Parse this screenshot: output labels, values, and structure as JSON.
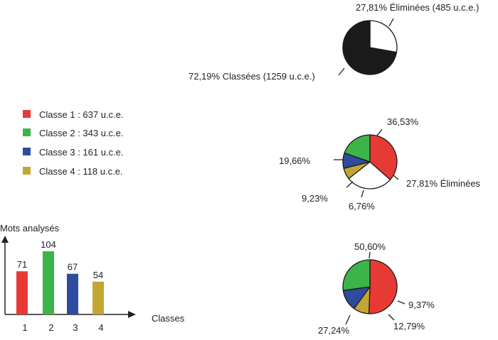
{
  "colors": {
    "classe1": "#e83a34",
    "classe2": "#3db44a",
    "classe3": "#2f4b9e",
    "classe4": "#c3a534",
    "classees": "#1a1a1a",
    "eliminees": "#ffffff"
  },
  "legend": {
    "items": [
      {
        "label": "Classe 1 : 637 u.c.e.",
        "color_key": "classe1"
      },
      {
        "label": "Classe 2 : 343 u.c.e.",
        "color_key": "classe2"
      },
      {
        "label": "Classe 3 : 161 u.c.e.",
        "color_key": "classe3"
      },
      {
        "label": "Classe 4 : 118 u.c.e.",
        "color_key": "classe4"
      }
    ]
  },
  "chart_data": [
    {
      "type": "pie",
      "slices": [
        {
          "value": 27.81,
          "color_key": "eliminees",
          "label": "27,81% Éliminées (485 u.c.e.)"
        },
        {
          "value": 72.19,
          "color_key": "classees",
          "label": "72,19% Classées (1259 u.c.e.)"
        }
      ]
    },
    {
      "type": "pie",
      "slices": [
        {
          "value": 36.53,
          "color_key": "classe1",
          "label": "36,53%"
        },
        {
          "value": 27.81,
          "color_key": "eliminees",
          "label": "27,81% Éliminées"
        },
        {
          "value": 6.76,
          "color_key": "classe4",
          "label": "6,76%"
        },
        {
          "value": 9.23,
          "color_key": "classe3",
          "label": "9,23%"
        },
        {
          "value": 19.66,
          "color_key": "classe2",
          "label": "19,66%"
        }
      ]
    },
    {
      "type": "pie",
      "slices": [
        {
          "value": 50.6,
          "color_key": "classe1",
          "label": "50,60%"
        },
        {
          "value": 9.37,
          "color_key": "classe4",
          "label": "9,37%"
        },
        {
          "value": 12.79,
          "color_key": "classe3",
          "label": "12,79%"
        },
        {
          "value": 27.24,
          "color_key": "classe2",
          "label": "27,24%"
        }
      ]
    },
    {
      "type": "bar",
      "ylabel": "Mots analysés",
      "xlabel": "Classes",
      "categories": [
        "1",
        "2",
        "3",
        "4"
      ],
      "values": [
        71,
        104,
        67,
        54
      ],
      "color_keys": [
        "classe1",
        "classe2",
        "classe3",
        "classe4"
      ]
    }
  ]
}
